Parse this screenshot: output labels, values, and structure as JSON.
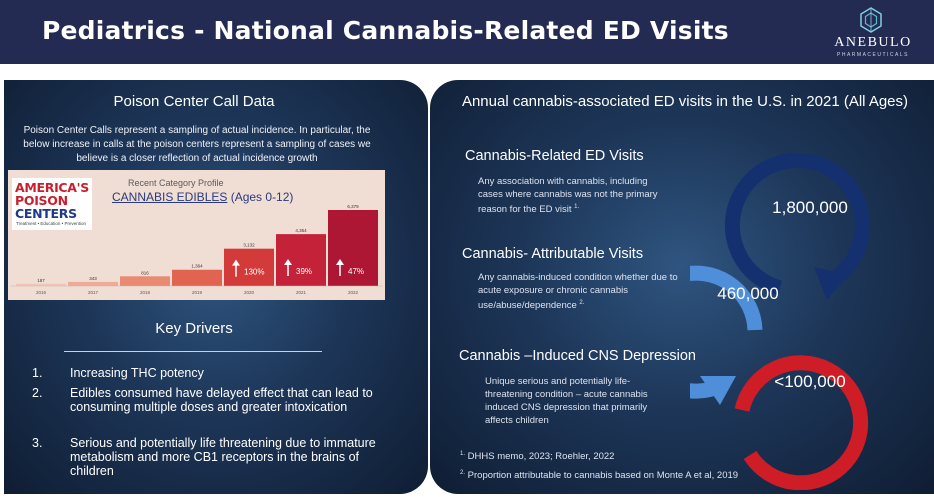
{
  "header": {
    "title": "Pediatrics - National Cannabis-Related ED Visits",
    "logo_name": "ANEBULO",
    "logo_sub": "PHARMACEUTICALS",
    "bg_color": "#232b52"
  },
  "left_panel": {
    "poison_title": "Poison Center Call Data",
    "poison_desc": "Poison Center Calls represent a sampling of actual incidence. In particular, the below increase in calls at the poison centers represent a sampling of cases we believe is a closer reflection of actual incidence growth",
    "logo": {
      "line1": "AMERICA'S",
      "line2": "POISON",
      "line3": "CENTERS",
      "line4": "Treatment • Education • Prevention"
    },
    "chart_subtitle": "Recent Category Profile",
    "chart_title": "CANNABIS EDIBLES",
    "chart_title_suffix": " (Ages 0-12)",
    "key_title": "Key Drivers",
    "drivers": [
      {
        "num": "1.",
        "text": "Increasing THC potency"
      },
      {
        "num": "2.",
        "text": "Edibles consumed  have delayed effect that can lead to  consuming multiple doses and greater intoxication"
      },
      {
        "num": "3.",
        "text": "Serious and potentially life threatening due to immature metabolism and more CB1 receptors in the brains of children"
      }
    ]
  },
  "chart_data": {
    "type": "bar",
    "title": "CANNABIS EDIBLES (Ages 0-12)",
    "subtitle": "Recent Category Profile",
    "categories": [
      "2016",
      "2017",
      "2018",
      "2019",
      "2020",
      "2021",
      "2022"
    ],
    "values": [
      187,
      343,
      816,
      1364,
      3132,
      4354,
      6379
    ],
    "value_labels": [
      "187",
      "343",
      "816",
      "1,364",
      "3,132",
      "4,354",
      "6,379"
    ],
    "growth_labels": [
      "",
      "",
      "",
      "",
      "130%",
      "39%",
      "47%"
    ],
    "ylim": [
      0,
      6379
    ],
    "bar_colors": [
      "#f1c5b7",
      "#eeaa96",
      "#e98b73",
      "#e06451",
      "#d33a3a",
      "#c32238",
      "#ad1734"
    ]
  },
  "right_panel": {
    "title": "Annual cannabis-associated ED visits in the U.S. in 2021 (All Ages)",
    "sections": [
      {
        "title": "Cannabis-Related ED Visits",
        "desc": "Any association with cannabis, including cases where cannabis was not the primary reason for the ED visit",
        "sup": "1."
      },
      {
        "title": "Cannabis- Attributable Visits",
        "desc": "Any cannabis-induced condition whether due to acute exposure or chronic cannabis use/abuse/dependence",
        "sup": "2."
      },
      {
        "title": "Cannabis –Induced CNS Depression",
        "desc": "Unique serious and potentially life-threatening condition – acute cannabis induced CNS depression that primarily affects children",
        "sup": ""
      }
    ],
    "values": [
      "1,800,000",
      "460,000",
      "<100,000"
    ],
    "refs": [
      {
        "sup": "1.",
        "text": " DHHS memo, 2023; Roehler, 2022"
      },
      {
        "sup": "2.",
        "text": " Proportion attributable to cannabis based on Monte A et al, 2019"
      }
    ],
    "arrow_colors": [
      "#14306f",
      "#4f8fd9",
      "#cf1d27"
    ]
  }
}
